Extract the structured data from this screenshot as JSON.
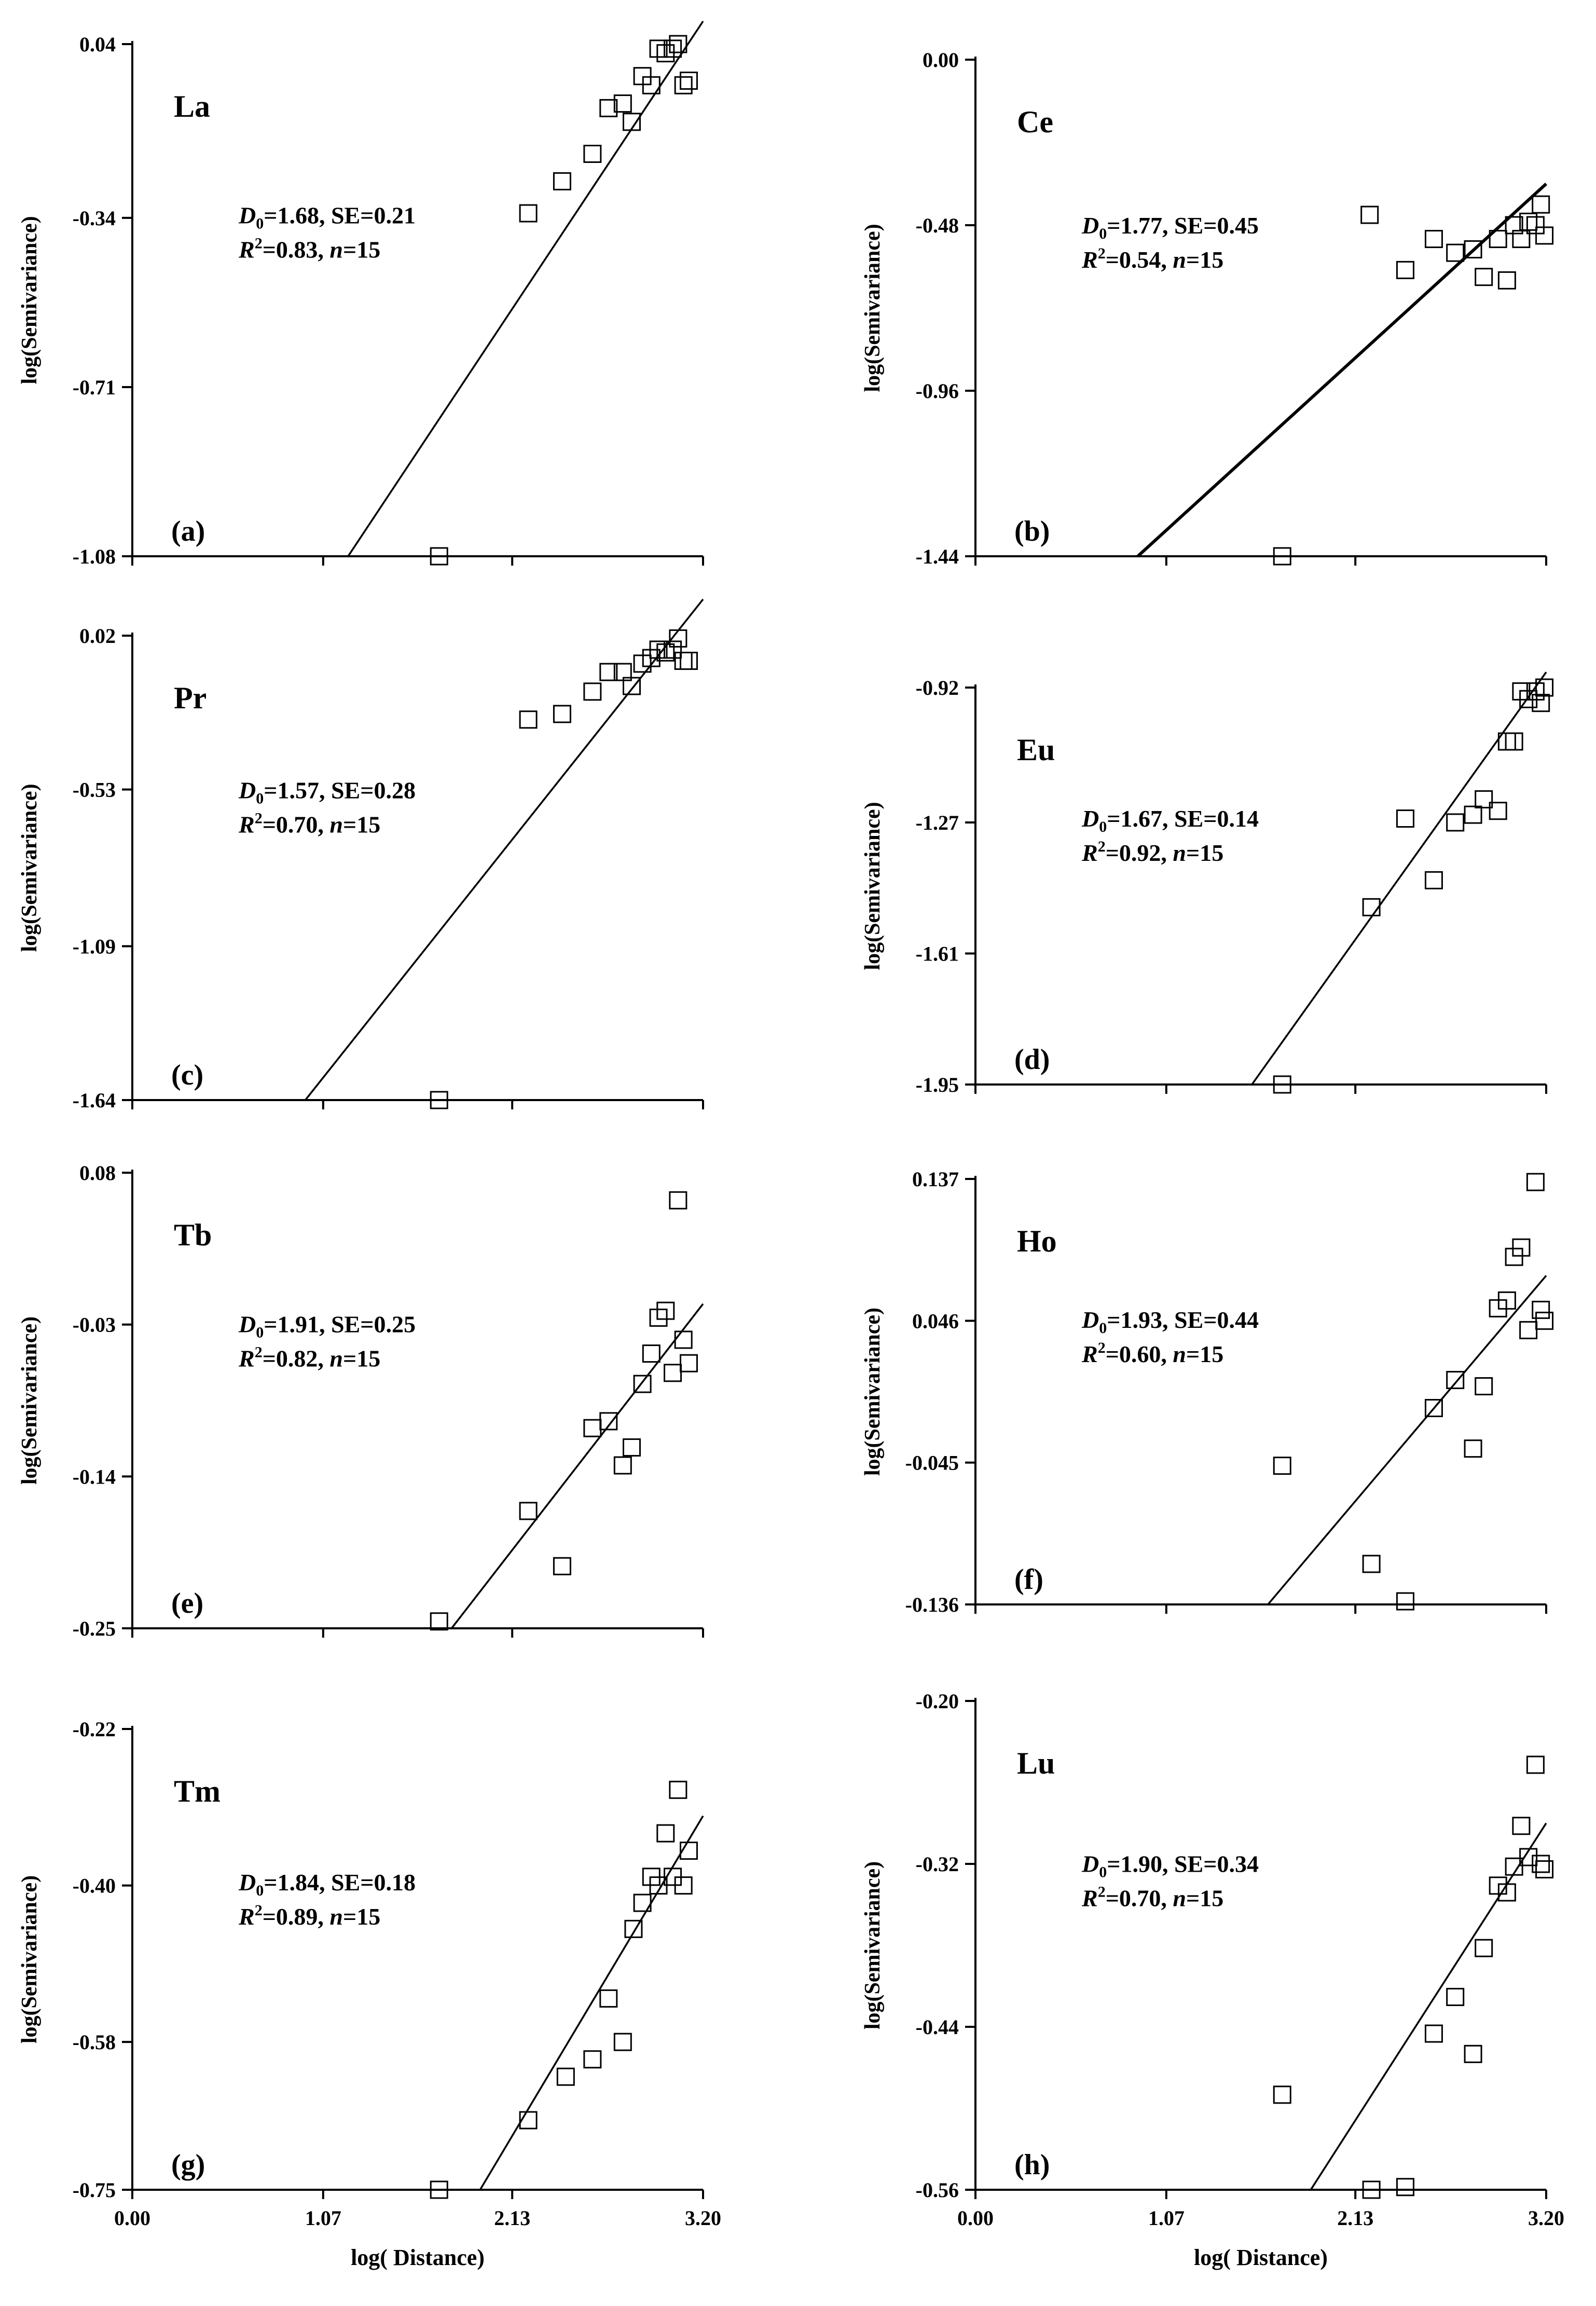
{
  "shared": {
    "xlabel": "log( Distance)",
    "ylabel": "log(Semivariance)",
    "xlim": [
      0.0,
      3.2
    ],
    "xticks": [
      "0.00",
      "1.07",
      "2.13",
      "3.20"
    ],
    "xtick_values": [
      0.0,
      1.07,
      2.13,
      3.2
    ]
  },
  "chart_data": [
    {
      "type": "scatter",
      "panel": "(a)",
      "element": "La",
      "ylim": [
        -1.08,
        0.04
      ],
      "yticks": [
        "0.04",
        "-0.34",
        "-0.71",
        "-1.08"
      ],
      "ytick_values": [
        0.04,
        -0.34,
        -0.71,
        -1.08
      ],
      "stats_line1": [
        "1.68",
        "0.21"
      ],
      "stats_line2": [
        "0.83",
        "15"
      ],
      "points": [
        [
          1.72,
          -1.08
        ],
        [
          2.22,
          -0.33
        ],
        [
          2.41,
          -0.26
        ],
        [
          2.58,
          -0.2
        ],
        [
          2.67,
          -0.1
        ],
        [
          2.75,
          -0.09
        ],
        [
          2.8,
          -0.13
        ],
        [
          2.86,
          -0.03
        ],
        [
          2.91,
          -0.05
        ],
        [
          2.95,
          0.03
        ],
        [
          2.99,
          0.02
        ],
        [
          3.03,
          0.03
        ],
        [
          3.06,
          0.04
        ],
        [
          3.09,
          -0.05
        ],
        [
          3.12,
          -0.04
        ]
      ],
      "fit": [
        [
          1.21,
          -1.08
        ],
        [
          3.2,
          0.09
        ]
      ],
      "fit_bold": false
    },
    {
      "type": "scatter",
      "panel": "(b)",
      "element": "Ce",
      "ylim": [
        -1.44,
        0.0
      ],
      "yticks": [
        "0.00",
        "-0.48",
        "-0.96",
        "-1.44"
      ],
      "ytick_values": [
        0.0,
        -0.48,
        -0.96,
        -1.44
      ],
      "stats_line1": [
        "1.77",
        "0.45"
      ],
      "stats_line2": [
        "0.54",
        "15"
      ],
      "points": [
        [
          1.72,
          -1.44
        ],
        [
          2.21,
          -0.45
        ],
        [
          2.41,
          -0.61
        ],
        [
          2.57,
          -0.52
        ],
        [
          2.69,
          -0.56
        ],
        [
          2.79,
          -0.55
        ],
        [
          2.85,
          -0.63
        ],
        [
          2.93,
          -0.52
        ],
        [
          2.98,
          -0.64
        ],
        [
          3.02,
          -0.48
        ],
        [
          3.06,
          -0.52
        ],
        [
          3.1,
          -0.47
        ],
        [
          3.14,
          -0.48
        ],
        [
          3.17,
          -0.42
        ],
        [
          3.19,
          -0.51
        ]
      ],
      "fit": [
        [
          0.91,
          -1.44
        ],
        [
          3.2,
          -0.36
        ]
      ],
      "fit_bold": true
    },
    {
      "type": "scatter",
      "panel": "(c)",
      "element": "Pr",
      "ylim": [
        -1.64,
        0.02
      ],
      "yticks": [
        "0.02",
        "-0.53",
        "-1.09",
        "-1.64"
      ],
      "ytick_values": [
        0.02,
        -0.53,
        -1.09,
        -1.64
      ],
      "stats_line1": [
        "1.57",
        "0.28"
      ],
      "stats_line2": [
        "0.70",
        "15"
      ],
      "points": [
        [
          1.72,
          -1.64
        ],
        [
          2.22,
          -0.28
        ],
        [
          2.41,
          -0.26
        ],
        [
          2.58,
          -0.18
        ],
        [
          2.67,
          -0.11
        ],
        [
          2.75,
          -0.11
        ],
        [
          2.8,
          -0.16
        ],
        [
          2.86,
          -0.08
        ],
        [
          2.91,
          -0.06
        ],
        [
          2.95,
          -0.03
        ],
        [
          2.99,
          -0.04
        ],
        [
          3.03,
          -0.03
        ],
        [
          3.06,
          0.01
        ],
        [
          3.09,
          -0.07
        ],
        [
          3.12,
          -0.07
        ]
      ],
      "fit": [
        [
          0.97,
          -1.64
        ],
        [
          3.2,
          0.15
        ]
      ],
      "fit_bold": false
    },
    {
      "type": "scatter",
      "panel": "(d)",
      "element": "Eu",
      "ylim": [
        -1.95,
        -0.92
      ],
      "yticks": [
        "-0.92",
        "-1.27",
        "-1.61",
        "-1.95"
      ],
      "ytick_values": [
        -0.92,
        -1.27,
        -1.61,
        -1.95
      ],
      "stats_line1": [
        "1.67",
        "0.14"
      ],
      "stats_line2": [
        "0.92",
        "15"
      ],
      "points": [
        [
          1.72,
          -1.95
        ],
        [
          2.22,
          -1.49
        ],
        [
          2.41,
          -1.26
        ],
        [
          2.57,
          -1.42
        ],
        [
          2.69,
          -1.27
        ],
        [
          2.79,
          -1.25
        ],
        [
          2.85,
          -1.21
        ],
        [
          2.93,
          -1.24
        ],
        [
          2.98,
          -1.06
        ],
        [
          3.02,
          -1.06
        ],
        [
          3.06,
          -0.93
        ],
        [
          3.1,
          -0.95
        ],
        [
          3.14,
          -0.93
        ],
        [
          3.17,
          -0.96
        ],
        [
          3.19,
          -0.92
        ]
      ],
      "fit": [
        [
          1.55,
          -1.95
        ],
        [
          3.2,
          -0.88
        ]
      ],
      "fit_bold": false
    },
    {
      "type": "scatter",
      "panel": "(e)",
      "element": "Tb",
      "ylim": [
        -0.25,
        0.08
      ],
      "yticks": [
        "0.08",
        "-0.03",
        "-0.14",
        "-0.25"
      ],
      "ytick_values": [
        0.08,
        -0.03,
        -0.14,
        -0.25
      ],
      "stats_line1": [
        "1.91",
        "0.25"
      ],
      "stats_line2": [
        "0.82",
        "15"
      ],
      "points": [
        [
          1.72,
          -0.245
        ],
        [
          2.22,
          -0.165
        ],
        [
          2.41,
          -0.205
        ],
        [
          2.58,
          -0.105
        ],
        [
          2.67,
          -0.1
        ],
        [
          2.75,
          -0.132
        ],
        [
          2.8,
          -0.119
        ],
        [
          2.86,
          -0.073
        ],
        [
          2.91,
          -0.051
        ],
        [
          2.95,
          -0.025
        ],
        [
          2.99,
          -0.02
        ],
        [
          3.03,
          -0.065
        ],
        [
          3.06,
          0.06
        ],
        [
          3.09,
          -0.041
        ],
        [
          3.12,
          -0.058
        ]
      ],
      "fit": [
        [
          1.79,
          -0.25
        ],
        [
          3.2,
          -0.015
        ]
      ],
      "fit_bold": false
    },
    {
      "type": "scatter",
      "panel": "(f)",
      "element": "Ho",
      "ylim": [
        -0.136,
        0.137
      ],
      "yticks": [
        "0.137",
        "0.046",
        "-0.045",
        "-0.136"
      ],
      "ytick_values": [
        0.137,
        0.046,
        -0.045,
        -0.136
      ],
      "stats_line1": [
        "1.93",
        "0.44"
      ],
      "stats_line2": [
        "0.60",
        "15"
      ],
      "points": [
        [
          1.72,
          -0.047
        ],
        [
          2.22,
          -0.11
        ],
        [
          2.41,
          -0.134
        ],
        [
          2.57,
          -0.01
        ],
        [
          2.69,
          0.008
        ],
        [
          2.79,
          -0.036
        ],
        [
          2.85,
          0.004
        ],
        [
          2.93,
          0.054
        ],
        [
          2.98,
          0.059
        ],
        [
          3.02,
          0.087
        ],
        [
          3.06,
          0.093
        ],
        [
          3.1,
          0.04
        ],
        [
          3.14,
          0.135
        ],
        [
          3.17,
          0.053
        ],
        [
          3.19,
          0.046
        ]
      ],
      "fit": [
        [
          1.64,
          -0.136
        ],
        [
          3.2,
          0.075
        ]
      ],
      "fit_bold": false
    },
    {
      "type": "scatter",
      "panel": "(g)",
      "element": "Tm",
      "ylim": [
        -0.75,
        -0.22
      ],
      "yticks": [
        "-0.22",
        "-0.40",
        "-0.58",
        "-0.75"
      ],
      "ytick_values": [
        -0.22,
        -0.4,
        -0.58,
        -0.75
      ],
      "stats_line1": [
        "1.84",
        "0.18"
      ],
      "stats_line2": [
        "0.89",
        "15"
      ],
      "points": [
        [
          1.72,
          -0.75
        ],
        [
          2.22,
          -0.67
        ],
        [
          2.43,
          -0.62
        ],
        [
          2.58,
          -0.6
        ],
        [
          2.67,
          -0.53
        ],
        [
          2.75,
          -0.58
        ],
        [
          2.81,
          -0.45
        ],
        [
          2.86,
          -0.42
        ],
        [
          2.91,
          -0.39
        ],
        [
          2.95,
          -0.4
        ],
        [
          2.99,
          -0.34
        ],
        [
          3.03,
          -0.39
        ],
        [
          3.06,
          -0.29
        ],
        [
          3.09,
          -0.4
        ],
        [
          3.12,
          -0.36
        ]
      ],
      "fit": [
        [
          1.95,
          -0.75
        ],
        [
          3.2,
          -0.32
        ]
      ],
      "fit_bold": false
    },
    {
      "type": "scatter",
      "panel": "(h)",
      "element": "Lu",
      "ylim": [
        -0.56,
        -0.2
      ],
      "yticks": [
        "-0.20",
        "-0.32",
        "-0.44",
        "-0.56"
      ],
      "ytick_values": [
        -0.2,
        -0.32,
        -0.44,
        -0.56
      ],
      "stats_line1": [
        "1.90",
        "0.34"
      ],
      "stats_line2": [
        "0.70",
        "15"
      ],
      "points": [
        [
          1.72,
          -0.49
        ],
        [
          2.22,
          -0.56
        ],
        [
          2.41,
          -0.558
        ],
        [
          2.57,
          -0.445
        ],
        [
          2.69,
          -0.418
        ],
        [
          2.79,
          -0.46
        ],
        [
          2.85,
          -0.382
        ],
        [
          2.93,
          -0.336
        ],
        [
          2.98,
          -0.341
        ],
        [
          3.02,
          -0.322
        ],
        [
          3.06,
          -0.292
        ],
        [
          3.1,
          -0.315
        ],
        [
          3.14,
          -0.247
        ],
        [
          3.17,
          -0.32
        ],
        [
          3.19,
          -0.324
        ]
      ],
      "fit": [
        [
          1.88,
          -0.56
        ],
        [
          3.2,
          -0.29
        ]
      ],
      "fit_bold": false
    }
  ]
}
